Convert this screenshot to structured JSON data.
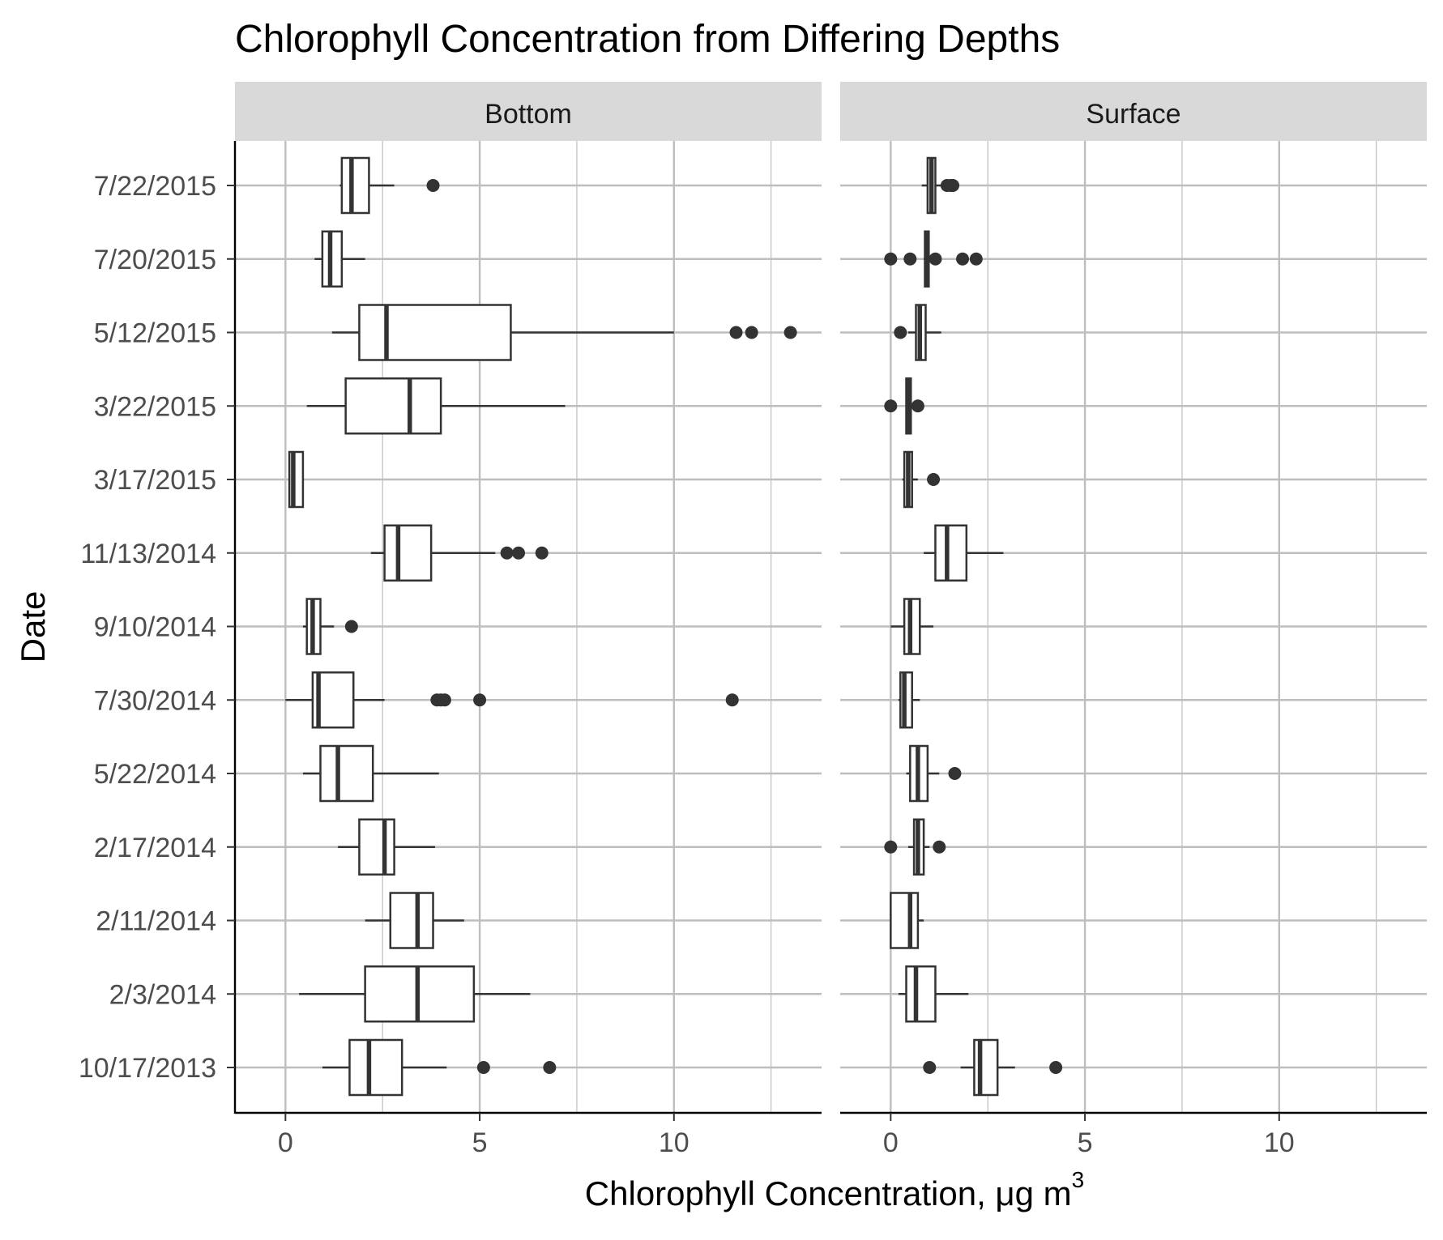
{
  "chart_data": {
    "type": "boxplot",
    "title": "Chlorophyll Concentration from Differing Depths",
    "xlabel": "Chlorophyll Concentration, μg m",
    "xlabel_superscript": "3",
    "ylabel": "Date",
    "xlim": [
      -1.3,
      13.8
    ],
    "x_ticks": [
      0,
      5,
      10
    ],
    "x_tick_labels": [
      "0",
      "5",
      "10"
    ],
    "categories": [
      "7/22/2015",
      "7/20/2015",
      "5/12/2015",
      "3/22/2015",
      "3/17/2015",
      "11/13/2014",
      "9/10/2014",
      "7/30/2014",
      "5/22/2014",
      "2/17/2014",
      "2/11/2014",
      "2/3/2014",
      "10/17/2013"
    ],
    "grid": true,
    "colors": {
      "box_stroke": "#333333",
      "box_fill": "#ffffff",
      "outlier": "#333333",
      "grid": "#bebebe",
      "strip_bg": "#d9d9d9",
      "axis": "#000000"
    },
    "facets": [
      {
        "label": "Bottom",
        "boxes": [
          {
            "date": "7/22/2015",
            "lower_whisker": 1.4,
            "q1": 1.45,
            "median": 1.7,
            "q3": 2.15,
            "upper_whisker": 2.8,
            "outliers": [
              3.8
            ]
          },
          {
            "date": "7/20/2015",
            "lower_whisker": 0.75,
            "q1": 0.95,
            "median": 1.15,
            "q3": 1.45,
            "upper_whisker": 2.05,
            "outliers": []
          },
          {
            "date": "5/12/2015",
            "lower_whisker": 1.2,
            "q1": 1.9,
            "median": 2.6,
            "q3": 5.8,
            "upper_whisker": 10.0,
            "outliers": [
              11.6,
              12.0,
              13.0
            ]
          },
          {
            "date": "3/22/2015",
            "lower_whisker": 0.55,
            "q1": 1.55,
            "median": 3.2,
            "q3": 4.0,
            "upper_whisker": 7.2,
            "outliers": []
          },
          {
            "date": "3/17/2015",
            "lower_whisker": 0.1,
            "q1": 0.1,
            "median": 0.2,
            "q3": 0.45,
            "upper_whisker": 0.45,
            "outliers": []
          },
          {
            "date": "11/13/2014",
            "lower_whisker": 2.2,
            "q1": 2.55,
            "median": 2.9,
            "q3": 3.75,
            "upper_whisker": 5.4,
            "outliers": [
              5.7,
              6.0,
              6.6
            ]
          },
          {
            "date": "9/10/2014",
            "lower_whisker": 0.45,
            "q1": 0.55,
            "median": 0.7,
            "q3": 0.9,
            "upper_whisker": 1.25,
            "outliers": [
              1.7
            ]
          },
          {
            "date": "7/30/2014",
            "lower_whisker": 0.0,
            "q1": 0.7,
            "median": 0.85,
            "q3": 1.75,
            "upper_whisker": 2.55,
            "outliers": [
              3.9,
              4.0,
              4.1,
              5.0,
              11.5
            ]
          },
          {
            "date": "5/22/2014",
            "lower_whisker": 0.45,
            "q1": 0.9,
            "median": 1.35,
            "q3": 2.25,
            "upper_whisker": 3.95,
            "outliers": []
          },
          {
            "date": "2/17/2014",
            "lower_whisker": 1.35,
            "q1": 1.9,
            "median": 2.55,
            "q3": 2.8,
            "upper_whisker": 3.85,
            "outliers": []
          },
          {
            "date": "2/11/2014",
            "lower_whisker": 2.05,
            "q1": 2.7,
            "median": 3.4,
            "q3": 3.8,
            "upper_whisker": 4.6,
            "outliers": []
          },
          {
            "date": "2/3/2014",
            "lower_whisker": 0.35,
            "q1": 2.05,
            "median": 3.4,
            "q3": 4.85,
            "upper_whisker": 6.3,
            "outliers": []
          },
          {
            "date": "10/17/2013",
            "lower_whisker": 0.95,
            "q1": 1.65,
            "median": 2.15,
            "q3": 3.0,
            "upper_whisker": 4.15,
            "outliers": [
              5.1,
              6.8
            ]
          }
        ]
      },
      {
        "label": "Surface",
        "boxes": [
          {
            "date": "7/22/2015",
            "lower_whisker": 0.8,
            "q1": 0.95,
            "median": 1.05,
            "q3": 1.15,
            "upper_whisker": 1.35,
            "outliers": [
              1.45,
              1.55,
              1.6
            ]
          },
          {
            "date": "7/20/2015",
            "lower_whisker": 0.85,
            "q1": 0.88,
            "median": 0.92,
            "q3": 0.98,
            "upper_whisker": 1.05,
            "outliers": [
              0.0,
              0.5,
              1.15,
              1.85,
              2.2
            ]
          },
          {
            "date": "5/12/2015",
            "lower_whisker": 0.45,
            "q1": 0.65,
            "median": 0.75,
            "q3": 0.9,
            "upper_whisker": 1.3,
            "outliers": [
              0.25
            ]
          },
          {
            "date": "3/22/2015",
            "lower_whisker": 0.38,
            "q1": 0.4,
            "median": 0.45,
            "q3": 0.52,
            "upper_whisker": 0.6,
            "outliers": [
              0.0,
              0.7
            ]
          },
          {
            "date": "3/17/2015",
            "lower_whisker": 0.3,
            "q1": 0.35,
            "median": 0.45,
            "q3": 0.55,
            "upper_whisker": 0.7,
            "outliers": [
              1.1
            ]
          },
          {
            "date": "11/13/2014",
            "lower_whisker": 0.85,
            "q1": 1.15,
            "median": 1.45,
            "q3": 1.95,
            "upper_whisker": 2.9,
            "outliers": []
          },
          {
            "date": "9/10/2014",
            "lower_whisker": 0.0,
            "q1": 0.35,
            "median": 0.5,
            "q3": 0.75,
            "upper_whisker": 1.1,
            "outliers": []
          },
          {
            "date": "7/30/2014",
            "lower_whisker": 0.2,
            "q1": 0.25,
            "median": 0.35,
            "q3": 0.55,
            "upper_whisker": 0.75,
            "outliers": []
          },
          {
            "date": "5/22/2014",
            "lower_whisker": 0.4,
            "q1": 0.5,
            "median": 0.7,
            "q3": 0.95,
            "upper_whisker": 1.25,
            "outliers": [
              1.65
            ]
          },
          {
            "date": "2/17/2014",
            "lower_whisker": 0.45,
            "q1": 0.6,
            "median": 0.7,
            "q3": 0.85,
            "upper_whisker": 1.0,
            "outliers": [
              0.0,
              1.25
            ]
          },
          {
            "date": "2/11/2014",
            "lower_whisker": 0.0,
            "q1": 0.0,
            "median": 0.5,
            "q3": 0.7,
            "upper_whisker": 0.85,
            "outliers": []
          },
          {
            "date": "2/3/2014",
            "lower_whisker": 0.2,
            "q1": 0.4,
            "median": 0.65,
            "q3": 1.15,
            "upper_whisker": 2.0,
            "outliers": []
          },
          {
            "date": "10/17/2013",
            "lower_whisker": 1.8,
            "q1": 2.15,
            "median": 2.3,
            "q3": 2.75,
            "upper_whisker": 3.2,
            "outliers": [
              1.0,
              4.25
            ]
          }
        ]
      }
    ]
  }
}
